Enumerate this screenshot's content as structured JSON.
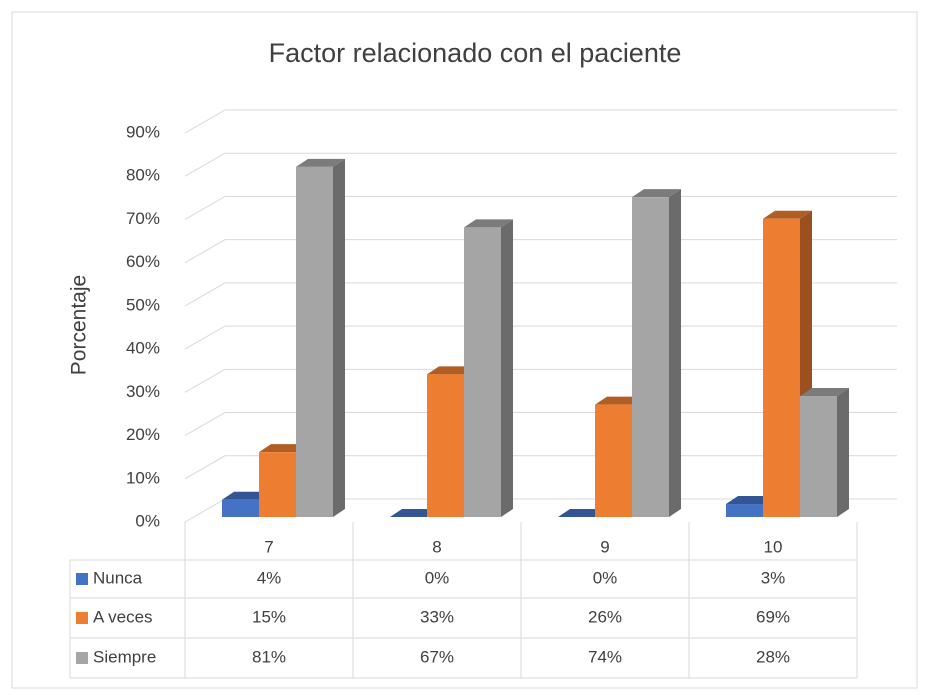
{
  "chart_data": {
    "type": "bar3d",
    "title": "Factor relacionado con el paciente",
    "y_label": "Porcentaje",
    "categories": [
      "7",
      "8",
      "9",
      "10"
    ],
    "series": [
      {
        "name": "Nunca",
        "color": "#4472c4",
        "values": [
          4,
          0,
          0,
          3
        ],
        "value_labels": [
          "4%",
          "0%",
          "0%",
          "3%"
        ]
      },
      {
        "name": "A veces",
        "color": "#ed7d31",
        "values": [
          15,
          33,
          26,
          69
        ],
        "value_labels": [
          "15%",
          "33%",
          "26%",
          "69%"
        ]
      },
      {
        "name": "Siempre",
        "color": "#a5a5a5",
        "values": [
          81,
          67,
          74,
          28
        ],
        "value_labels": [
          "81%",
          "67%",
          "74%",
          "28%"
        ]
      }
    ],
    "ylim": [
      0,
      90
    ],
    "yticks": [
      {
        "value": 0,
        "label": "0%"
      },
      {
        "value": 10,
        "label": "10%"
      },
      {
        "value": 20,
        "label": "20%"
      },
      {
        "value": 30,
        "label": "30%"
      },
      {
        "value": 40,
        "label": "40%"
      },
      {
        "value": 50,
        "label": "50%"
      },
      {
        "value": 60,
        "label": "60%"
      },
      {
        "value": 70,
        "label": "70%"
      },
      {
        "value": 80,
        "label": "80%"
      },
      {
        "value": 90,
        "label": "90%"
      }
    ],
    "grid": true,
    "data_table": true
  }
}
